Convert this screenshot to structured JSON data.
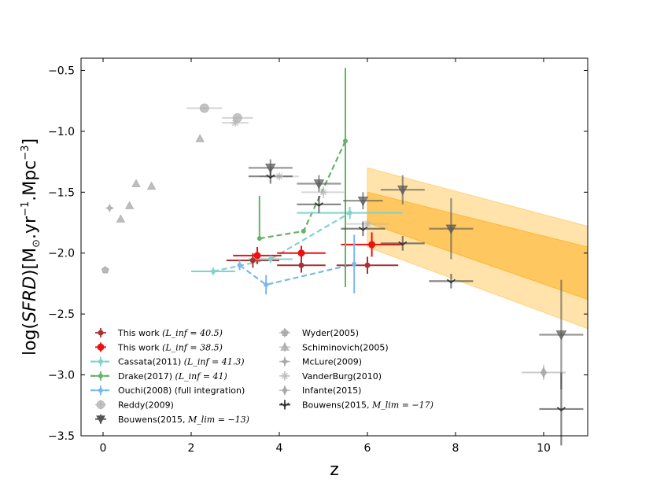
{
  "chart_data": {
    "type": "scatter",
    "xlabel": "z",
    "ylabel": "log(SFRD)[M☉.yr⁻¹.Mpc⁻³]",
    "ylabel_parts": {
      "pre": "log(",
      "sfrd": "SFRD",
      "mid": ")[M",
      "sun": "⊙",
      "unit1": ".yr",
      "exp1": "−1",
      "unit2": ".Mpc",
      "exp2": "−3",
      "end": "]"
    },
    "xlim": [
      -0.5,
      11
    ],
    "ylim": [
      -3.5,
      -0.4
    ],
    "xticks": [
      0,
      2,
      4,
      6,
      8,
      10
    ],
    "xtick_labels": [
      "0",
      "2",
      "4",
      "6",
      "8",
      "10"
    ],
    "yticks": [
      -0.5,
      -1.0,
      -1.5,
      -2.0,
      -2.5,
      -3.0,
      -3.5
    ],
    "ytick_labels": [
      "−0.5",
      "−1.0",
      "−1.5",
      "−2.0",
      "−2.5",
      "−3.0",
      "−3.5"
    ],
    "bands": [
      {
        "name": "band-outer",
        "color": "#ffcc66",
        "opacity": 0.55,
        "x": [
          6.0,
          11.0
        ],
        "upper": [
          -1.3,
          -1.78
        ],
        "lower": [
          -1.95,
          -2.62
        ]
      },
      {
        "name": "band-inner",
        "color": "#ffb020",
        "opacity": 0.55,
        "x": [
          6.0,
          11.0
        ],
        "upper": [
          -1.5,
          -1.95
        ],
        "lower": [
          -1.75,
          -2.38
        ]
      }
    ],
    "series": [
      {
        "name": "This work (L_inf = 40.5)",
        "legend": "This work",
        "legend_math": "(L_inf = 40.5)",
        "color": "#a83232",
        "marker": "circle",
        "size": 3,
        "linestyle": "none",
        "points": [
          {
            "x": 3.4,
            "y": -2.06,
            "xerr": 0.6,
            "yerr": 0.06
          },
          {
            "x": 4.5,
            "y": -2.1,
            "xerr": 0.55,
            "yerr": 0.06
          },
          {
            "x": 6.0,
            "y": -2.1,
            "xerr": 0.7,
            "yerr": 0.07
          }
        ]
      },
      {
        "name": "This work (L_inf = 38.5)",
        "legend": "This work",
        "legend_math": "(L_inf = 38.5)",
        "color": "#ee1111",
        "marker": "circle",
        "size": 4,
        "linestyle": "none",
        "points": [
          {
            "x": 3.5,
            "y": -2.02,
            "xerr": 0.55,
            "yerr": 0.07
          },
          {
            "x": 4.5,
            "y": -2.0,
            "xerr": 0.55,
            "yerr": 0.06
          },
          {
            "x": 6.1,
            "y": -1.93,
            "xerr": 0.7,
            "yerr": 0.1
          }
        ]
      },
      {
        "name": "Cassata(2011) (L_inf = 41.3)",
        "legend": "Cassata(2011)",
        "legend_math": "(L_inf = 41.3)",
        "color": "#7fd3cc",
        "marker": "circle",
        "size": 2.5,
        "linestyle": "dashed",
        "points": [
          {
            "x": 2.5,
            "y": -2.15,
            "xerr": 0.5,
            "yerr": 0.03
          },
          {
            "x": 3.8,
            "y": -2.05,
            "xerr": 0.5,
            "yerr": 0.03
          },
          {
            "x": 5.6,
            "y": -1.67,
            "xerr": 1.2,
            "yerr": 0.05
          }
        ]
      },
      {
        "name": "Drake(2017) (L_inf = 41)",
        "legend": "Drake(2017)",
        "legend_math": "(L_inf = 41)",
        "color": "#66b266",
        "marker": "circle",
        "size": 2.5,
        "linestyle": "dashed",
        "points": [
          {
            "x": 3.55,
            "y": -1.88,
            "xerr": 0.0,
            "yerr_lo": 0.0,
            "yerr_hi": 0.35
          },
          {
            "x": 4.55,
            "y": -1.82,
            "xerr": 0.0,
            "yerr_lo": 0.0,
            "yerr_hi": 0.0
          },
          {
            "x": 5.5,
            "y": -1.08,
            "xerr": 0.0,
            "yerr_lo": 1.2,
            "yerr_hi": 0.6
          }
        ]
      },
      {
        "name": "Ouchi(2008) (full integration)",
        "legend": "Ouchi(2008) (full integration)",
        "legend_math": "",
        "color": "#77b8f0",
        "marker": "circle",
        "size": 2.5,
        "linestyle": "dashed",
        "points": [
          {
            "x": 3.1,
            "y": -2.1,
            "xerr": 0.0,
            "yerr": 0.04
          },
          {
            "x": 3.7,
            "y": -2.26,
            "xerr": 0.0,
            "yerr": 0.08
          },
          {
            "x": 5.7,
            "y": -2.09,
            "xerr": 0.0,
            "yerr": 0.24
          }
        ]
      },
      {
        "name": "Reddy(2009)",
        "legend": "Reddy(2009)",
        "legend_math": "",
        "color": "#b0b0b0",
        "marker": "circle",
        "size": 5.5,
        "linestyle": "none",
        "points": [
          {
            "x": 2.3,
            "y": -0.81,
            "xerr": 0.4,
            "yerr": 0.01
          },
          {
            "x": 3.05,
            "y": -0.89,
            "xerr": 0.35,
            "yerr": 0.01
          }
        ]
      },
      {
        "name": "Bouwens(2015,M_lim = -13)",
        "legend": "Bouwens(2015,",
        "legend_math": "M_lim = −13)",
        "color": "#555555",
        "marker": "triangle-down",
        "size": 6,
        "linestyle": "none",
        "points": [
          {
            "x": 3.8,
            "y": -1.3,
            "xerr": 0.5,
            "yerr": 0.07
          },
          {
            "x": 4.9,
            "y": -1.43,
            "xerr": 0.5,
            "yerr": 0.07
          },
          {
            "x": 5.9,
            "y": -1.57,
            "xerr": 0.45,
            "yerr": 0.07
          },
          {
            "x": 6.8,
            "y": -1.48,
            "xerr": 0.5,
            "yerr": 0.12
          },
          {
            "x": 7.9,
            "y": -1.8,
            "xerr": 0.5,
            "yerr": 0.25
          },
          {
            "x": 10.4,
            "y": -2.67,
            "xerr": 0.5,
            "yerr": 0.45
          }
        ]
      },
      {
        "name": "Wyder(2005)",
        "legend": "Wyder(2005)",
        "legend_math": "",
        "color": "#a0a0a0",
        "marker": "pentagon",
        "size": 4.5,
        "linestyle": "none",
        "points": [
          {
            "x": 0.05,
            "y": -2.14,
            "xerr": 0.0,
            "yerr": 0.0
          }
        ]
      },
      {
        "name": "Schiminovich(2005)",
        "legend": "Schiminovich(2005)",
        "legend_math": "",
        "color": "#a8a8a8",
        "marker": "triangle-up",
        "size": 5,
        "linestyle": "none",
        "points": [
          {
            "x": 0.4,
            "y": -1.72,
            "xerr": 0.0,
            "yerr": 0.0
          },
          {
            "x": 0.6,
            "y": -1.61,
            "xerr": 0.0,
            "yerr": 0.0
          },
          {
            "x": 0.75,
            "y": -1.43,
            "xerr": 0.0,
            "yerr": 0.0
          },
          {
            "x": 1.1,
            "y": -1.45,
            "xerr": 0.0,
            "yerr": 0.0
          },
          {
            "x": 2.2,
            "y": -1.06,
            "xerr": 0.0,
            "yerr": 0.0
          }
        ]
      },
      {
        "name": "McLure(2009)",
        "legend": "McLure(2009)",
        "legend_math": "",
        "color": "#a0a0a0",
        "marker": "star",
        "size": 4.5,
        "linestyle": "none",
        "points": [
          {
            "x": 0.15,
            "y": -1.63,
            "xerr": 0.0,
            "yerr": 0.0
          }
        ]
      },
      {
        "name": "VanderBurg(2010)",
        "legend": "VanderBurg(2010)",
        "legend_math": "",
        "color": "#b8b8b8",
        "marker": "asterisk",
        "size": 5,
        "linestyle": "none",
        "points": [
          {
            "x": 3.0,
            "y": -0.93,
            "xerr": 0.3,
            "yerr": 0.02
          },
          {
            "x": 4.0,
            "y": -1.37,
            "xerr": 0.45,
            "yerr": 0.02
          },
          {
            "x": 5.0,
            "y": -1.5,
            "xerr": 0.5,
            "yerr": 0.05
          },
          {
            "x": 6.0,
            "y": -1.76,
            "xerr": 0.5,
            "yerr": 0.03
          }
        ]
      },
      {
        "name": "Infante(2015)",
        "legend": "Infante(2015)",
        "legend_math": "",
        "color": "#a0a0a0",
        "marker": "diamond",
        "size": 6,
        "linestyle": "none",
        "points": [
          {
            "x": 10.0,
            "y": -2.98,
            "xerr": 0.5,
            "yerr": 0.06
          }
        ]
      },
      {
        "name": "Bouwens(2015,M_lim = -17)",
        "legend": "Bouwens(2015,",
        "legend_math": "M_lim = −17)",
        "color": "#333333",
        "marker": "tick-down",
        "size": 5,
        "linestyle": "none",
        "points": [
          {
            "x": 3.8,
            "y": -1.37,
            "xerr": 0.5,
            "yerr": 0.06
          },
          {
            "x": 4.9,
            "y": -1.6,
            "xerr": 0.5,
            "yerr": 0.07
          },
          {
            "x": 5.9,
            "y": -1.8,
            "xerr": 0.5,
            "yerr": 0.06
          },
          {
            "x": 6.8,
            "y": -1.92,
            "xerr": 0.5,
            "yerr": 0.06
          },
          {
            "x": 7.9,
            "y": -2.23,
            "xerr": 0.5,
            "yerr": 0.06
          },
          {
            "x": 10.4,
            "y": -3.28,
            "xerr": 0.5,
            "yerr": 0.3
          }
        ]
      }
    ],
    "legend_columns": [
      [
        "This work (L_inf = 40.5)",
        "This work (L_inf = 38.5)",
        "Cassata(2011) (L_inf = 41.3)",
        "Drake(2017) (L_inf = 41)",
        "Ouchi(2008) (full integration)",
        "Reddy(2009)",
        "Bouwens(2015,M_lim = -13)"
      ],
      [
        "Wyder(2005)",
        "Schiminovich(2005)",
        "McLure(2009)",
        "VanderBurg(2010)",
        "Infante(2015)",
        "Bouwens(2015,M_lim = -17)"
      ]
    ],
    "legend_location": "lower-left"
  }
}
